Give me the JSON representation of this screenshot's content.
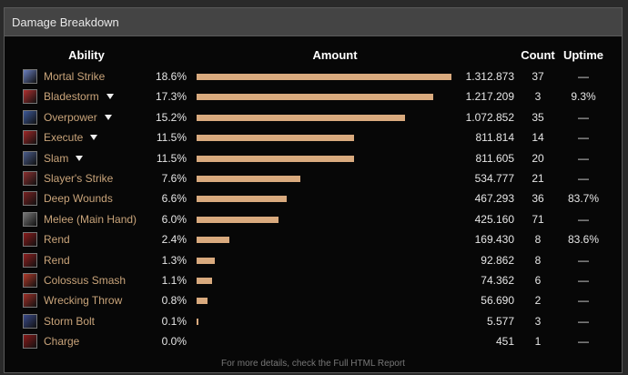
{
  "header": {
    "title": "Damage Breakdown"
  },
  "table": {
    "columns": [
      "Ability",
      "Amount",
      "Count",
      "Uptime"
    ],
    "rows": [
      {
        "ability": "Mortal Strike",
        "dropdown": false,
        "share": {
          "value": 18.6,
          "label": "18.6%"
        },
        "amount": "1.312.873",
        "count": 37,
        "uptime": "—"
      },
      {
        "ability": "Bladestorm",
        "dropdown": true,
        "share": {
          "value": 17.3,
          "label": "17.3%"
        },
        "amount": "1.217.209",
        "count": 3,
        "uptime": "9.3%"
      },
      {
        "ability": "Overpower",
        "dropdown": true,
        "share": {
          "value": 15.2,
          "label": "15.2%"
        },
        "amount": "1.072.852",
        "count": 35,
        "uptime": "—"
      },
      {
        "ability": "Execute",
        "dropdown": true,
        "share": {
          "value": 11.5,
          "label": "11.5%"
        },
        "amount": "811.814",
        "count": 14,
        "uptime": "—"
      },
      {
        "ability": "Slam",
        "dropdown": true,
        "share": {
          "value": 11.5,
          "label": "11.5%"
        },
        "amount": "811.605",
        "count": 20,
        "uptime": "—"
      },
      {
        "ability": "Slayer's Strike",
        "dropdown": false,
        "share": {
          "value": 7.6,
          "label": "7.6%"
        },
        "amount": "534.777",
        "count": 21,
        "uptime": "—"
      },
      {
        "ability": "Deep Wounds",
        "dropdown": false,
        "share": {
          "value": 6.6,
          "label": "6.6%"
        },
        "amount": "467.293",
        "count": 36,
        "uptime": "83.7%"
      },
      {
        "ability": "Melee (Main Hand)",
        "dropdown": false,
        "share": {
          "value": 6.0,
          "label": "6.0%"
        },
        "amount": "425.160",
        "count": 71,
        "uptime": "—"
      },
      {
        "ability": "Rend",
        "dropdown": false,
        "share": {
          "value": 2.4,
          "label": "2.4%"
        },
        "amount": "169.430",
        "count": 8,
        "uptime": "83.6%"
      },
      {
        "ability": "Rend",
        "dropdown": false,
        "share": {
          "value": 1.3,
          "label": "1.3%"
        },
        "amount": "92.862",
        "count": 8,
        "uptime": "—"
      },
      {
        "ability": "Colossus Smash",
        "dropdown": false,
        "share": {
          "value": 1.1,
          "label": "1.1%"
        },
        "amount": "74.362",
        "count": 6,
        "uptime": "—"
      },
      {
        "ability": "Wrecking Throw",
        "dropdown": false,
        "share": {
          "value": 0.8,
          "label": "0.8%"
        },
        "amount": "56.690",
        "count": 2,
        "uptime": "—"
      },
      {
        "ability": "Storm Bolt",
        "dropdown": false,
        "share": {
          "value": 0.1,
          "label": "0.1%"
        },
        "amount": "5.577",
        "count": 3,
        "uptime": "—"
      },
      {
        "ability": "Charge",
        "dropdown": false,
        "share": {
          "value": 0.0,
          "label": "0.0%"
        },
        "amount": "451",
        "count": 1,
        "uptime": "—"
      }
    ]
  },
  "footer": {
    "note": "For more details, check the Full HTML Report"
  }
}
